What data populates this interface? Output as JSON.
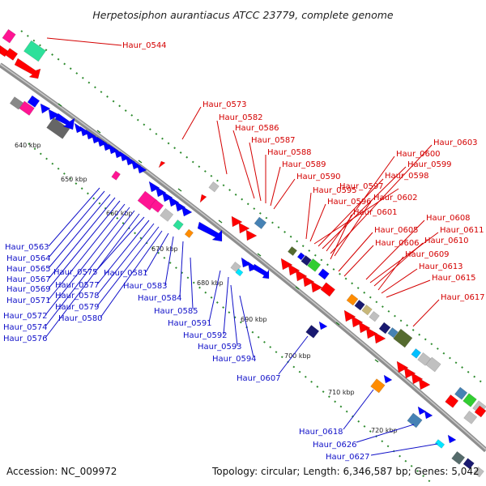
{
  "title": "Herpetosiphon aurantiacus ATCC 23779, complete genome",
  "footer": {
    "accession": "Accession: NC_009972",
    "summary": "Topology: circular; Length: 6,346,587 bp; Genes: 5,042"
  },
  "colors": {
    "forward_label": "#d40000",
    "reverse_label": "#1010c8",
    "backbone": "#9a9a9a",
    "track_dots": "#2e8b2e",
    "tick_marks": "#1f7a1f",
    "gene_palette": [
      "#ff0000",
      "#0000ff",
      "#ff1493",
      "#2de09a",
      "#888888",
      "#556b2f",
      "#191970",
      "#ff8c00",
      "#4682b4",
      "#00bfff",
      "#32cd32",
      "#c0c0c0"
    ]
  },
  "ticks": [
    "640 kbp",
    "650 kbp",
    "660 kbp",
    "670 kbp",
    "680 kbp",
    "690 kbp",
    "700 kbp",
    "710 kbp",
    "720 kbp"
  ],
  "forward_labels": [
    "Haur_0544",
    "Haur_0573",
    "Haur_0582",
    "Haur_0586",
    "Haur_0587",
    "Haur_0588",
    "Haur_0589",
    "Haur_0590",
    "Haur_0595",
    "Haur_0596",
    "Haur_0597",
    "Haur_0598",
    "Haur_0599",
    "Haur_0600",
    "Haur_0603",
    "Haur_0602",
    "Haur_0601",
    "Haur_0605",
    "Haur_0606",
    "Haur_0608",
    "Haur_0611",
    "Haur_0610",
    "Haur_0609",
    "Haur_0613",
    "Haur_0615",
    "Haur_0617"
  ],
  "reverse_labels": [
    "Haur_0563",
    "Haur_0564",
    "Haur_0565",
    "Haur_0567",
    "Haur_0569",
    "Haur_0571",
    "Haur_0572",
    "Haur_0574",
    "Haur_0576",
    "Haur_0575",
    "Haur_0577",
    "Haur_0578",
    "Haur_0579",
    "Haur_0580",
    "Haur_0581",
    "Haur_0583",
    "Haur_0584",
    "Haur_0585",
    "Haur_0591",
    "Haur_0592",
    "Haur_0593",
    "Haur_0594",
    "Haur_0607",
    "Haur_0618",
    "Haur_0626",
    "Haur_0627"
  ]
}
